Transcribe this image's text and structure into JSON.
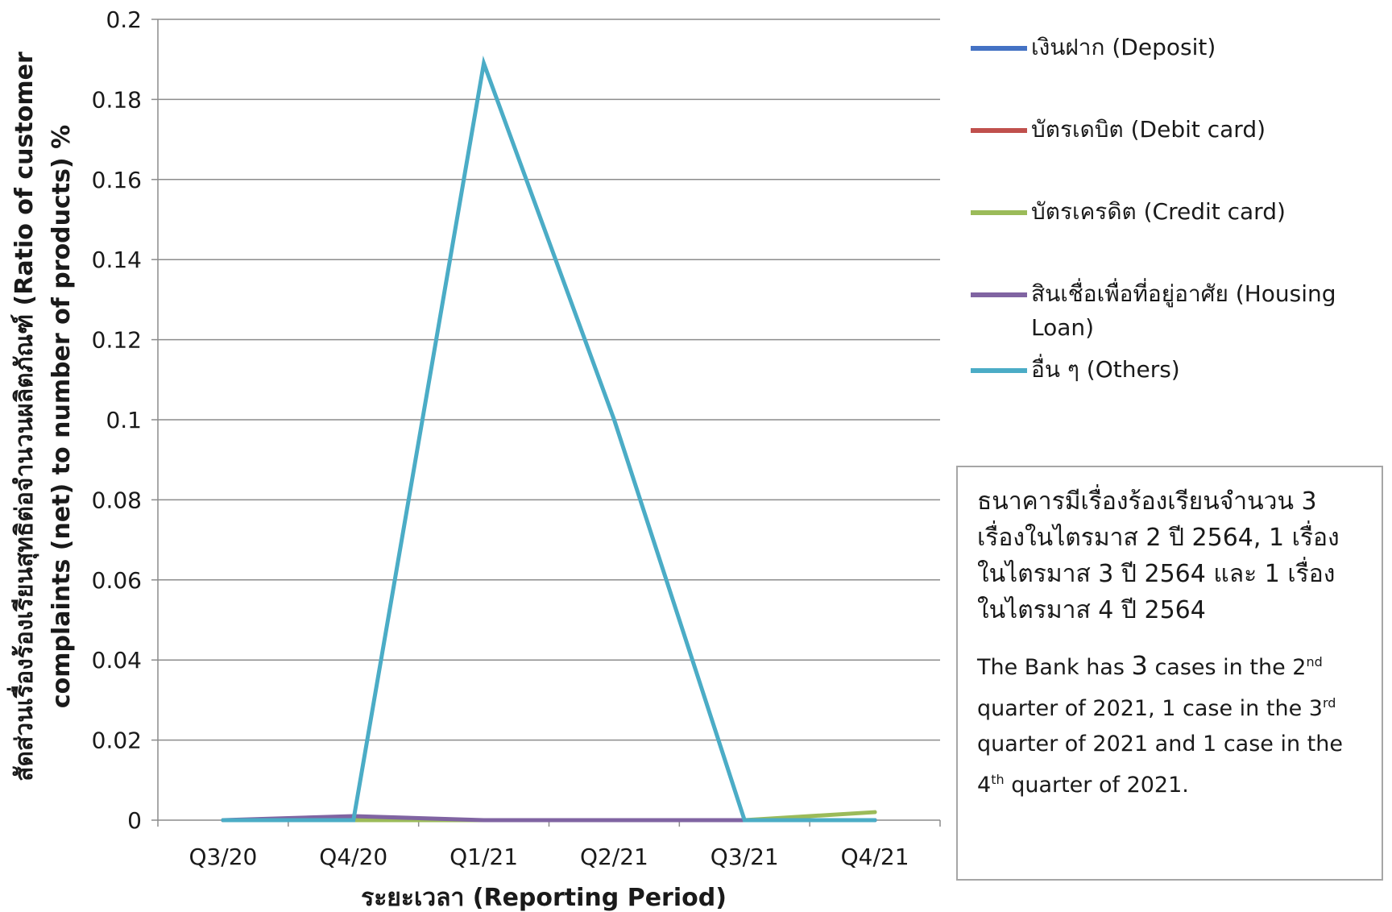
{
  "chart_data": {
    "type": "line",
    "categories": [
      "Q3/20",
      "Q4/20",
      "Q1/21",
      "Q2/21",
      "Q3/21",
      "Q4/21"
    ],
    "series": [
      {
        "name": "เงินฝาก (Deposit)",
        "color": "#4472C4",
        "values": [
          0,
          0,
          0,
          0,
          0,
          0
        ]
      },
      {
        "name": "บัตรเดบิต (Debit card)",
        "color": "#C0504D",
        "values": [
          0,
          0,
          0,
          0,
          0,
          0
        ]
      },
      {
        "name": "บัตรเครดิต (Credit card)",
        "color": "#9BBB59",
        "values": [
          0,
          0,
          0,
          0,
          0,
          0.002
        ]
      },
      {
        "name": "สินเชื่อเพื่อที่อยู่อาศัย (Housing Loan)",
        "color": "#8064A2",
        "values": [
          0,
          0.001,
          0,
          0,
          0,
          0
        ]
      },
      {
        "name": "อื่น ๆ (Others)",
        "color": "#4BACC6",
        "values": [
          0,
          0,
          0.189,
          0.1,
          0,
          0
        ]
      }
    ],
    "ylim": [
      0,
      0.2
    ],
    "yticks": [
      "0",
      "0.02",
      "0.04",
      "0.06",
      "0.08",
      "0.1",
      "0.12",
      "0.14",
      "0.16",
      "0.18",
      "0.2"
    ],
    "ylabel_line1": "สัดส่วนเรื่องร้องเรียนสุทธิต่อจำนวนผลิตภัณฑ์ (Ratio of customer",
    "ylabel_line2": "complaints (net) to number of products) %",
    "xlabel": "ระยะเวลา (Reporting Period)",
    "grid": true,
    "legend_position": "right"
  },
  "note": {
    "thai": "ธนาคารมีเรื่องร้องเรียนจำนวน 3 เรื่องในไตรมาส 2 ปี 2564, 1 เรื่อง ในไตรมาส 3 ปี 2564 และ 1 เรื่อง ในไตรมาส 4 ปี 2564",
    "en_part1": "The Bank has ",
    "en_num": "3",
    "en_part2": " cases in the 2",
    "en_sup1": "nd",
    "en_part3": " quarter of 2021, 1 case in the 3",
    "en_sup2": "rd",
    "en_part4": " quarter of 2021 and 1 case in the 4",
    "en_sup3": "th",
    "en_part5": " quarter of 2021."
  }
}
